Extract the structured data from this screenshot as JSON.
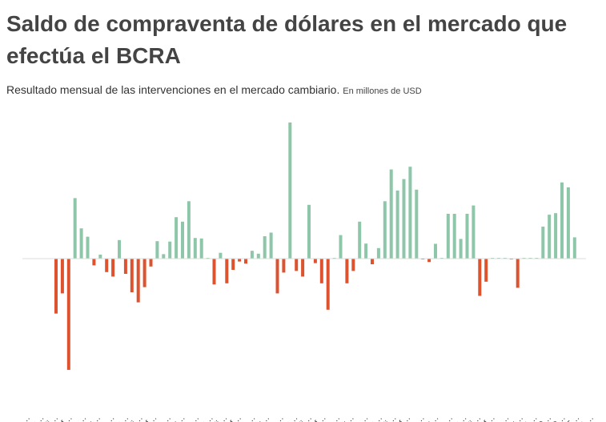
{
  "title": "Saldo de compraventa de dólares en el mercado que efectúa el BCRA",
  "subtitle": "Resultado mensual de las intervenciones en el mercado cambiario.",
  "units": "En millones de USD",
  "colors": {
    "positive": "#8dc6a8",
    "negative": "#dd5330",
    "axis": "#dddddd"
  },
  "chart_data": {
    "type": "bar",
    "title": "Saldo de compraventa de dólares en el mercado que efectúa el BCRA",
    "subtitle": "Resultado mensual de las intervenciones en el mercado cambiario.",
    "ylabel": "En millones de USD",
    "grid": false,
    "legend": "none",
    "ylim": [
      -5000,
      6100
    ],
    "values": [
      -2450,
      -1550,
      -4960,
      2700,
      1350,
      980,
      -300,
      180,
      -600,
      -800,
      830,
      -680,
      -1500,
      -1950,
      -1270,
      -350,
      780,
      200,
      760,
      1850,
      1650,
      2560,
      920,
      900,
      30,
      -1150,
      260,
      -1100,
      -500,
      -130,
      -220,
      350,
      220,
      1000,
      1160,
      -1550,
      -620,
      6070,
      -550,
      -800,
      2400,
      -200,
      -1100,
      -2280,
      30,
      1050,
      -1100,
      -550,
      1650,
      670,
      -250,
      470,
      2560,
      3980,
      3040,
      3550,
      4100,
      3080,
      -30,
      -150,
      660,
      20,
      2000,
      2000,
      880,
      2000,
      2370,
      -1660,
      -1030,
      20,
      20,
      20,
      -20,
      -1300,
      20,
      20,
      20,
      1430,
      1960,
      2030,
      3400,
      3180,
      950
    ],
    "tick_labels": [
      "a…",
      "o…",
      "di…",
      "f…",
      "a…",
      "ju…",
      "a…",
      "o…",
      "di…",
      "f…",
      "a…",
      "ju…",
      "a…",
      "o…",
      "di…",
      "f…",
      "a…",
      "ju…",
      "a…",
      "o…",
      "di…",
      "f…",
      "a…",
      "ju…",
      "a…",
      "o…",
      "di…",
      "f…",
      "a…",
      "ju…",
      "a…",
      "o…",
      "di…",
      "f…",
      "a…",
      "ju…",
      "A…",
      "O…",
      "D…",
      "F…",
      "A…"
    ]
  }
}
